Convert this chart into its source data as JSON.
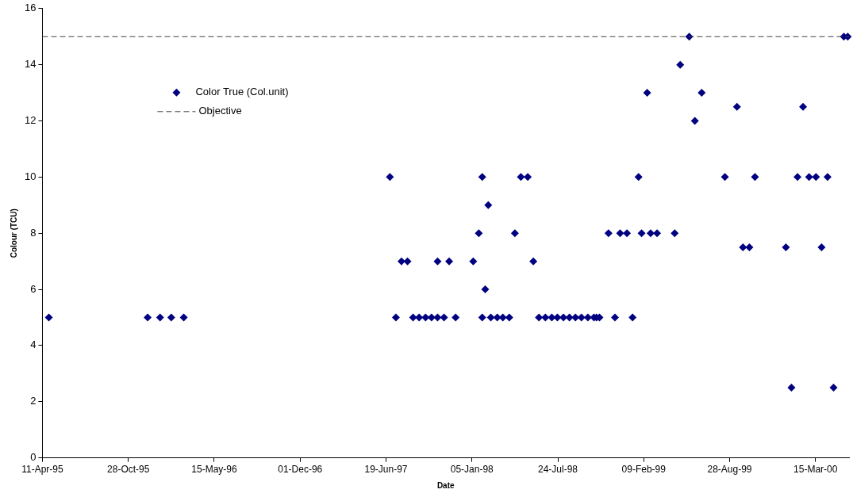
{
  "chart_data": {
    "type": "scatter",
    "xlabel": "Date",
    "ylabel": "Colour (TCU)",
    "xlim": [
      "1995-04-11",
      "2000-06-01"
    ],
    "xticks": [
      {
        "value": "1995-04-11",
        "label": "11-Apr-95"
      },
      {
        "value": "1995-10-28",
        "label": "28-Oct-95"
      },
      {
        "value": "1996-05-15",
        "label": "15-May-96"
      },
      {
        "value": "1996-12-01",
        "label": "01-Dec-96"
      },
      {
        "value": "1997-06-19",
        "label": "19-Jun-97"
      },
      {
        "value": "1998-01-05",
        "label": "05-Jan-98"
      },
      {
        "value": "1998-07-24",
        "label": "24-Jul-98"
      },
      {
        "value": "1999-02-09",
        "label": "09-Feb-99"
      },
      {
        "value": "1999-08-28",
        "label": "28-Aug-99"
      },
      {
        "value": "2000-03-15",
        "label": "15-Mar-00"
      }
    ],
    "ylim": [
      0,
      16
    ],
    "yticks": [
      0,
      2,
      4,
      6,
      8,
      10,
      12,
      14,
      16
    ],
    "grid": false,
    "legend": "top left",
    "marker": "diamond",
    "ref_lines": [
      {
        "axis": "y",
        "value": 15,
        "label": "Objective",
        "color": "#404040",
        "line_style": "dashed"
      }
    ],
    "series": [
      {
        "name": "Color True (Col.unit)",
        "color": "#000080",
        "x": [
          "1995-04-26",
          "1995-12-12",
          "1996-01-10",
          "1996-02-05",
          "1996-03-05",
          "1997-06-28",
          "1997-07-12",
          "1997-07-25",
          "1997-08-08",
          "1997-08-21",
          "1997-09-04",
          "1997-09-19",
          "1997-10-03",
          "1997-10-17",
          "1997-10-17",
          "1997-11-01",
          "1997-11-13",
          "1997-11-28",
          "1998-01-08",
          "1998-01-21",
          "1998-01-29",
          "1998-01-29",
          "1998-02-05",
          "1998-02-12",
          "1998-02-18",
          "1998-03-05",
          "1998-03-18",
          "1998-04-02",
          "1998-04-15",
          "1998-04-29",
          "1998-05-15",
          "1998-05-28",
          "1998-06-10",
          "1998-06-25",
          "1998-07-10",
          "1998-07-23",
          "1998-08-06",
          "1998-08-20",
          "1998-09-03",
          "1998-09-17",
          "1998-10-02",
          "1998-10-16",
          "1998-10-22",
          "1998-10-29",
          "1998-11-19",
          "1998-12-04",
          "1998-12-16",
          "1999-01-01",
          "1999-01-14",
          "1999-01-28",
          "1999-02-04",
          "1999-02-17",
          "1999-02-25",
          "1999-03-12",
          "1999-04-22",
          "1999-05-05",
          "1999-05-26",
          "1999-06-08",
          "1999-06-24",
          "1999-08-17",
          "1999-09-14",
          "1999-09-28",
          "1999-10-13",
          "1999-10-26",
          "2000-01-06",
          "2000-01-19",
          "2000-02-02",
          "2000-02-15",
          "2000-02-29",
          "2000-03-16",
          "2000-03-29",
          "2000-04-12",
          "2000-04-26",
          "2000-05-20",
          "2000-05-29"
        ],
        "values": [
          5,
          5,
          5,
          5,
          5,
          10,
          5,
          7,
          7,
          5,
          5,
          5,
          5,
          5,
          7,
          5,
          7,
          5,
          7,
          8,
          10,
          5,
          6,
          9,
          5,
          5,
          5,
          5,
          8,
          10,
          10,
          7,
          5,
          5,
          5,
          5,
          5,
          5,
          5,
          5,
          5,
          5,
          5,
          5,
          8,
          5,
          8,
          8,
          5,
          10,
          8,
          13,
          8,
          8,
          8,
          14,
          15,
          12,
          13,
          10,
          12.5,
          7.5,
          7.5,
          10,
          7.5,
          2.5,
          10,
          12.5,
          10,
          10,
          7.5,
          10,
          2.5,
          15,
          15
        ]
      }
    ]
  }
}
